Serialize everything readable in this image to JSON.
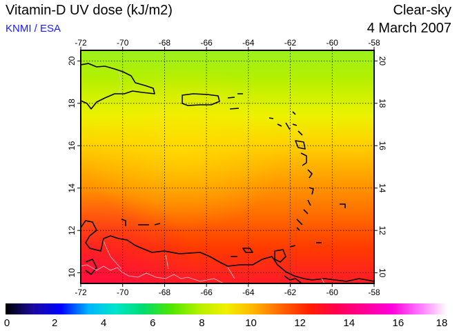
{
  "header": {
    "title": "Vitamin-D UV dose (kJ/m2)",
    "credit": "KNMI / ESA",
    "sky_condition": "Clear-sky",
    "date": "4 March 2007"
  },
  "map": {
    "lon_range": [
      -72,
      -58
    ],
    "lat_range": [
      9.5,
      20.5
    ],
    "lon_ticks": [
      "-72",
      "-70",
      "-68",
      "-66",
      "-64",
      "-62",
      "-60",
      "-58"
    ],
    "lat_ticks": [
      "10",
      "12",
      "14",
      "16",
      "18",
      "20"
    ],
    "grid": true,
    "grid_style": "dotted",
    "coastline_color": "#000000",
    "border_color": "#c8c8c8"
  },
  "colorbar": {
    "labels": [
      "0",
      "2",
      "4",
      "6",
      "8",
      "10",
      "12",
      "14",
      "16",
      "18"
    ],
    "range": [
      0,
      18
    ],
    "colors": [
      "#000000",
      "#1a0a9e",
      "#0000ff",
      "#00b4ff",
      "#00e6c8",
      "#00dc6e",
      "#50e600",
      "#b4f000",
      "#f0f000",
      "#ffb400",
      "#ff6400",
      "#ff1e00",
      "#ff0050",
      "#ff0096",
      "#ff00dc",
      "#ff78ff",
      "#ffffff"
    ]
  }
}
